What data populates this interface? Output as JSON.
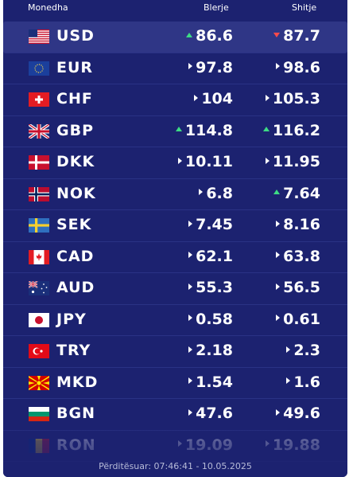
{
  "header": {
    "name": "Monedha",
    "buy": "Blerje",
    "sell": "Shitje"
  },
  "rates": [
    {
      "code": "USD",
      "flag": "us-flag-icon",
      "buy": "86.6",
      "buy_trend": "up",
      "sell": "87.7",
      "sell_trend": "down",
      "active": true
    },
    {
      "code": "EUR",
      "flag": "eu-flag-icon",
      "buy": "97.8",
      "buy_trend": "flat",
      "sell": "98.6",
      "sell_trend": "flat"
    },
    {
      "code": "CHF",
      "flag": "ch-flag-icon",
      "buy": "104",
      "buy_trend": "flat",
      "sell": "105.3",
      "sell_trend": "flat"
    },
    {
      "code": "GBP",
      "flag": "gb-flag-icon",
      "buy": "114.8",
      "buy_trend": "up",
      "sell": "116.2",
      "sell_trend": "up"
    },
    {
      "code": "DKK",
      "flag": "dk-flag-icon",
      "buy": "10.11",
      "buy_trend": "flat",
      "sell": "11.95",
      "sell_trend": "flat"
    },
    {
      "code": "NOK",
      "flag": "no-flag-icon",
      "buy": "6.8",
      "buy_trend": "flat",
      "sell": "7.64",
      "sell_trend": "up"
    },
    {
      "code": "SEK",
      "flag": "se-flag-icon",
      "buy": "7.45",
      "buy_trend": "flat",
      "sell": "8.16",
      "sell_trend": "flat"
    },
    {
      "code": "CAD",
      "flag": "ca-flag-icon",
      "buy": "62.1",
      "buy_trend": "flat",
      "sell": "63.8",
      "sell_trend": "flat"
    },
    {
      "code": "AUD",
      "flag": "au-flag-icon",
      "buy": "55.3",
      "buy_trend": "flat",
      "sell": "56.5",
      "sell_trend": "flat"
    },
    {
      "code": "JPY",
      "flag": "jp-flag-icon",
      "buy": "0.58",
      "buy_trend": "flat",
      "sell": "0.61",
      "sell_trend": "flat"
    },
    {
      "code": "TRY",
      "flag": "tr-flag-icon",
      "buy": "2.18",
      "buy_trend": "flat",
      "sell": "2.3",
      "sell_trend": "flat"
    },
    {
      "code": "MKD",
      "flag": "mk-flag-icon",
      "buy": "1.54",
      "buy_trend": "flat",
      "sell": "1.6",
      "sell_trend": "flat"
    },
    {
      "code": "BGN",
      "flag": "bg-flag-icon",
      "buy": "47.6",
      "buy_trend": "flat",
      "sell": "49.6",
      "sell_trend": "flat"
    },
    {
      "code": "RON",
      "flag": "ro-flag-icon",
      "buy": "19.09",
      "buy_trend": "flat",
      "sell": "19.88",
      "sell_trend": "flat"
    }
  ],
  "footer": {
    "updated": "Përditësuar: 07:46:41 - 10.05.2025"
  },
  "colors": {
    "panel": "#1c2270",
    "active_row": "#2f3686",
    "up": "#3ddc84",
    "down": "#ff4a4a"
  }
}
